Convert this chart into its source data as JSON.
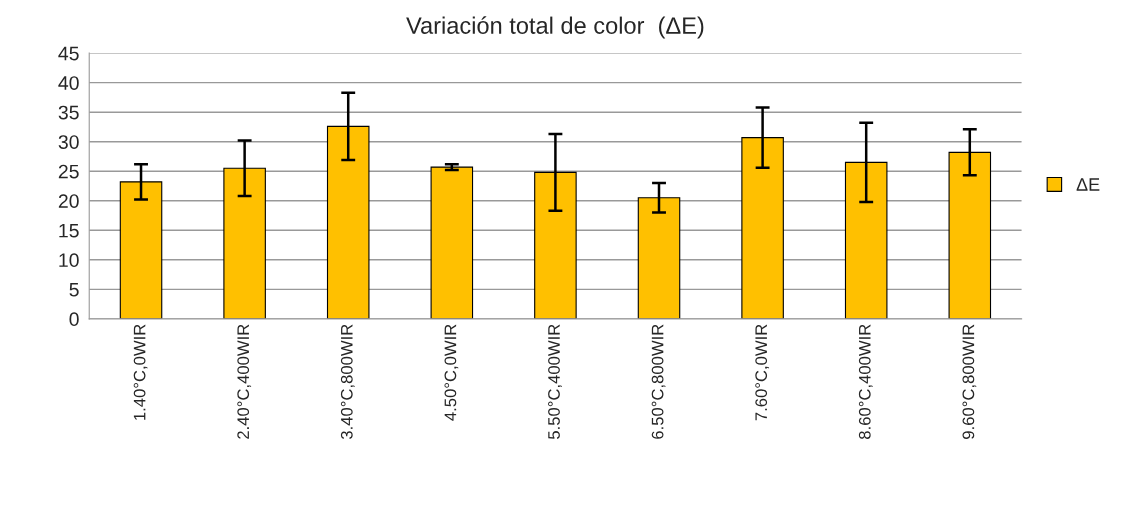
{
  "chart_data": {
    "type": "bar",
    "title": "Variación total de color  (ΔE)",
    "categories": [
      "1.40°C,0WIR",
      "2.40°C,400WIR",
      "3.40°C,800WIR",
      "4.50°C,0WIR",
      "5.50°C,400WIR",
      "6.50°C,800WIR",
      "7.60°C,0WIR",
      "8.60°C,400WIR",
      "9.60°C,800WIR"
    ],
    "series": [
      {
        "name": "ΔE",
        "color": "#ffc000",
        "values": [
          23.2,
          25.5,
          32.6,
          25.7,
          24.8,
          20.5,
          30.7,
          26.5,
          28.2
        ],
        "errors": [
          3.0,
          4.7,
          5.7,
          0.5,
          6.5,
          2.5,
          5.1,
          6.7,
          3.9
        ]
      }
    ],
    "ylim": [
      0,
      45
    ],
    "yticks": [
      0,
      5,
      10,
      15,
      20,
      25,
      30,
      35,
      40,
      45
    ],
    "grid": "y",
    "legend": "right"
  }
}
